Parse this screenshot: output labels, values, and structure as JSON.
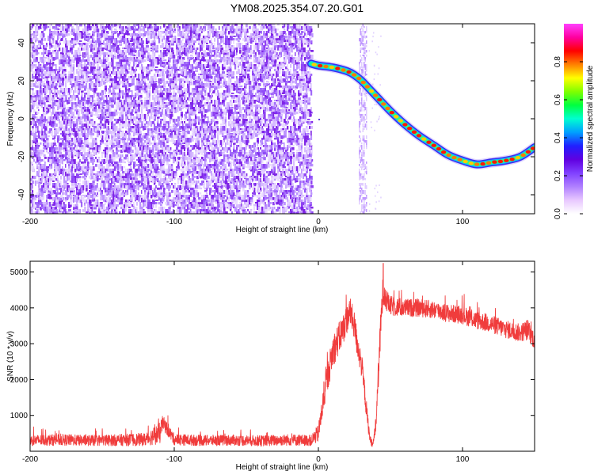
{
  "figure_title": "YM08.2025.354.07.20.G01",
  "chart_data": [
    {
      "type": "heatmap",
      "title": "YM08.2025.354.07.20.G01",
      "xlabel": "Height of straight line (km)",
      "ylabel": "Frequency (Hz)",
      "xlim": [
        -200,
        150
      ],
      "ylim": [
        -50,
        50
      ],
      "x_ticks": [
        -200,
        -100,
        0,
        100
      ],
      "x_tick_labels": [
        "-200",
        "-100",
        "0",
        "100"
      ],
      "y_ticks": [
        -40,
        -20,
        0,
        20,
        40
      ],
      "y_tick_labels": [
        "-40",
        "-20",
        "0",
        "20",
        "40"
      ],
      "noise_region_x": [
        -200,
        -5
      ],
      "noise_band_x": [
        28,
        33
      ],
      "trace": {
        "x": [
          -5,
          0,
          10,
          20,
          25,
          30,
          35,
          40,
          50,
          60,
          70,
          80,
          90,
          100,
          110,
          120,
          130,
          140,
          150
        ],
        "y": [
          29,
          28,
          27,
          25,
          23,
          20,
          16,
          12,
          4,
          -3,
          -9,
          -14,
          -19,
          -22,
          -24,
          -23,
          -22,
          -20,
          -15
        ]
      },
      "colorbar": {
        "label": "Normalized spectral amplitude",
        "ticks": [
          0.0,
          0.2,
          0.4,
          0.6,
          0.8
        ],
        "tick_labels": [
          "0.0",
          "0.2",
          "0.4",
          "0.6",
          "0.8"
        ],
        "range": [
          0,
          1
        ],
        "colors": [
          "#ffffff",
          "#e8c8ff",
          "#b080ff",
          "#8040ff",
          "#6000e0",
          "#2020ff",
          "#00a0ff",
          "#00ffd0",
          "#00ff40",
          "#80ff00",
          "#ffff00",
          "#ff8000",
          "#ff0000",
          "#ff00a0",
          "#ff40ff"
        ]
      }
    },
    {
      "type": "line",
      "xlabel": "Height of straight line (km)",
      "ylabel": "SNR (10 * v/v)",
      "xlim": [
        -200,
        150
      ],
      "ylim": [
        0,
        5300
      ],
      "x_ticks": [
        -200,
        -100,
        0,
        100
      ],
      "x_tick_labels": [
        "-200",
        "-100",
        "0",
        "100"
      ],
      "y_ticks": [
        1000,
        2000,
        3000,
        4000,
        5000
      ],
      "y_tick_labels": [
        "1000",
        "2000",
        "3000",
        "4000",
        "5000"
      ],
      "color": "#f03c3c",
      "series": [
        {
          "name": "SNR",
          "x": [
            -200,
            -180,
            -160,
            -140,
            -120,
            -110,
            -108,
            -100,
            -80,
            -60,
            -40,
            -20,
            -5,
            0,
            5,
            10,
            15,
            20,
            22,
            25,
            27,
            30,
            32,
            34,
            36,
            38,
            40,
            42,
            44,
            45,
            47,
            50,
            60,
            70,
            80,
            90,
            100,
            110,
            120,
            130,
            140,
            145,
            150
          ],
          "y": [
            300,
            320,
            300,
            310,
            330,
            500,
            800,
            330,
            300,
            310,
            290,
            320,
            300,
            500,
            1800,
            2800,
            3200,
            3700,
            3900,
            3500,
            3000,
            2400,
            1700,
            900,
            300,
            200,
            800,
            2500,
            4000,
            4600,
            4200,
            4050,
            4000,
            4000,
            3950,
            3850,
            3800,
            3650,
            3550,
            3400,
            3300,
            3400,
            3100
          ],
          "spread": [
            150,
            160,
            150,
            160,
            180,
            300,
            200,
            160,
            150,
            150,
            150,
            160,
            150,
            250,
            400,
            450,
            450,
            400,
            400,
            400,
            400,
            350,
            300,
            250,
            120,
            100,
            250,
            450,
            500,
            500,
            300,
            280,
            250,
            250,
            250,
            250,
            250,
            250,
            250,
            250,
            250,
            300,
            250
          ]
        }
      ]
    }
  ]
}
